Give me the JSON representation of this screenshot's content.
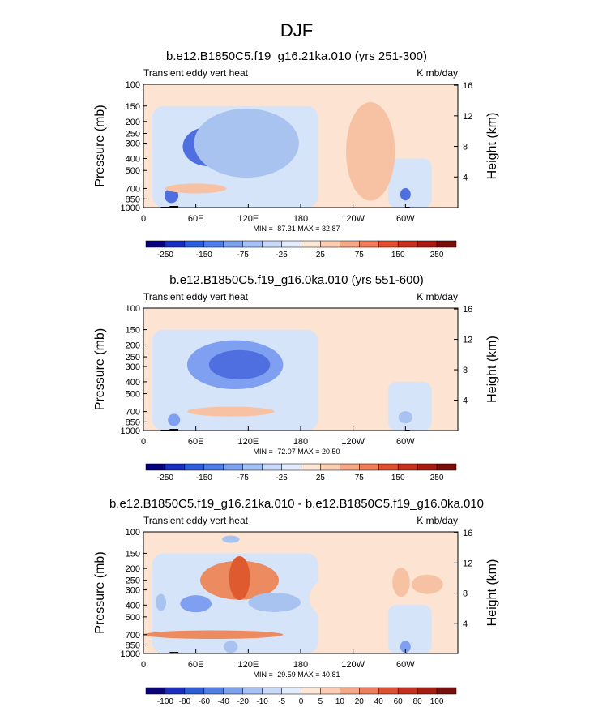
{
  "figure": {
    "title": "DJF"
  },
  "colors": {
    "pos_fill_a": "#fde4d2",
    "neg_fill_a": "#d6e4fa",
    "neg_fill_b": "#a9c3f0",
    "neg_fill_c": "#7f9ff0",
    "neg_fill_d": "#4f6fe0",
    "pos_fill_b": "#f7c2a4",
    "pos_fill_c": "#ec8a60",
    "pos_fill_d": "#e05a30",
    "topo": "#000000"
  },
  "chart_data": [
    {
      "type": "heatmap",
      "title": "b.e12.B1850C5.f19_g16.21ka.010 (yrs 251-300)",
      "left_label": "Transient eddy vert heat",
      "right_label": "K mb/day",
      "ylabel": "Pressure (mb)",
      "ylabel_right": "Height (km)",
      "x_ticks": [
        "0",
        "60E",
        "120E",
        "180",
        "120W",
        "60W"
      ],
      "y_ticks": [
        "100",
        "150",
        "200",
        "250",
        "300",
        "400",
        "500",
        "700",
        "850",
        "1000"
      ],
      "y_right_ticks": [
        "16",
        "12",
        "8",
        "4"
      ],
      "stats": "MIN = -87.31  MAX =  32.87",
      "colorbar_labels": [
        "-250",
        "-150",
        "-75",
        "-25",
        "25",
        "75",
        "150",
        "250"
      ],
      "colorbar_colors": [
        "#08037a",
        "#1a2fc0",
        "#2b5ed8",
        "#4f7ee8",
        "#7da0f0",
        "#a6c1f6",
        "#c8d9fa",
        "#e3ecfc",
        "#fde8d8",
        "#fbcdb2",
        "#f7a686",
        "#f07c5a",
        "#e0502f",
        "#c7301d",
        "#a81a12",
        "#7a0c0c"
      ],
      "blobs": [
        {
          "lon": 32,
          "p": 800,
          "w": 8,
          "h": 0.06,
          "v": -45
        },
        {
          "lon": 75,
          "p": 320,
          "w": 30,
          "h": 0.16,
          "v": -40
        },
        {
          "lon": 140,
          "p": 320,
          "w": 30,
          "h": 0.16,
          "v": -42
        },
        {
          "lon": 118,
          "p": 300,
          "w": 60,
          "h": 0.28,
          "v": -18
        },
        {
          "lon": 300,
          "p": 780,
          "w": 6,
          "h": 0.05,
          "v": -40
        },
        {
          "lon": 60,
          "p": 700,
          "w": 35,
          "h": 0.04,
          "v": 10
        },
        {
          "lon": 260,
          "p": 350,
          "w": 28,
          "h": 0.4,
          "v": 8
        }
      ]
    },
    {
      "type": "heatmap",
      "title": "b.e12.B1850C5.f19_g16.0ka.010 (yrs 551-600)",
      "left_label": "Transient eddy vert heat",
      "right_label": "K mb/day",
      "ylabel": "Pressure (mb)",
      "ylabel_right": "Height (km)",
      "x_ticks": [
        "0",
        "60E",
        "120E",
        "180",
        "120W",
        "60W"
      ],
      "y_ticks": [
        "100",
        "150",
        "200",
        "250",
        "300",
        "400",
        "500",
        "700",
        "850",
        "1000"
      ],
      "y_right_ticks": [
        "16",
        "12",
        "8",
        "4"
      ],
      "stats": "MIN = -72.07  MAX =  20.50",
      "colorbar_labels": [
        "-250",
        "-150",
        "-75",
        "-25",
        "25",
        "75",
        "150",
        "250"
      ],
      "colorbar_colors": [
        "#08037a",
        "#1a2fc0",
        "#2b5ed8",
        "#4f7ee8",
        "#7da0f0",
        "#a6c1f6",
        "#c8d9fa",
        "#e3ecfc",
        "#fde8d8",
        "#fbcdb2",
        "#f7a686",
        "#f07c5a",
        "#e0502f",
        "#c7301d",
        "#a81a12",
        "#7a0c0c"
      ],
      "blobs": [
        {
          "lon": 105,
          "p": 290,
          "w": 55,
          "h": 0.2,
          "v": -35
        },
        {
          "lon": 110,
          "p": 290,
          "w": 35,
          "h": 0.12,
          "v": -55
        },
        {
          "lon": 35,
          "p": 820,
          "w": 7,
          "h": 0.05,
          "v": -30
        },
        {
          "lon": 100,
          "p": 700,
          "w": 50,
          "h": 0.04,
          "v": 10
        },
        {
          "lon": 300,
          "p": 780,
          "w": 8,
          "h": 0.05,
          "v": -20
        }
      ]
    },
    {
      "type": "heatmap",
      "title": "b.e12.B1850C5.f19_g16.21ka.010 - b.e12.B1850C5.f19_g16.0ka.010",
      "left_label": "Transient eddy vert heat",
      "right_label": "K mb/day",
      "ylabel": "Pressure (mb)",
      "ylabel_right": "Height (km)",
      "x_ticks": [
        "0",
        "60E",
        "120E",
        "180",
        "120W",
        "60W"
      ],
      "y_ticks": [
        "100",
        "150",
        "200",
        "250",
        "300",
        "400",
        "500",
        "700",
        "850",
        "1000"
      ],
      "y_right_ticks": [
        "16",
        "12",
        "8",
        "4"
      ],
      "stats": "MIN = -29.59  MAX =  40.81",
      "colorbar_labels": [
        "-100",
        "-80",
        "-60",
        "-40",
        "-20",
        "-10",
        "-5",
        "0",
        "5",
        "10",
        "20",
        "40",
        "60",
        "80",
        "100"
      ],
      "colorbar_colors": [
        "#08037a",
        "#1a2fc0",
        "#2b5ed8",
        "#4f7ee8",
        "#7da0f0",
        "#a6c1f6",
        "#c8d9fa",
        "#e3ecfc",
        "#fde8d8",
        "#fbcdb2",
        "#f7a686",
        "#f07c5a",
        "#e0502f",
        "#c7301d",
        "#a81a12",
        "#7a0c0c"
      ],
      "blobs": [
        {
          "lon": 110,
          "p": 250,
          "w": 45,
          "h": 0.16,
          "v": 22
        },
        {
          "lon": 110,
          "p": 240,
          "w": 12,
          "h": 0.18,
          "v": 38
        },
        {
          "lon": 60,
          "p": 390,
          "w": 18,
          "h": 0.07,
          "v": -28
        },
        {
          "lon": 150,
          "p": 380,
          "w": 30,
          "h": 0.08,
          "v": -18
        },
        {
          "lon": 20,
          "p": 380,
          "w": 6,
          "h": 0.07,
          "v": -12
        },
        {
          "lon": 80,
          "p": 700,
          "w": 80,
          "h": 0.035,
          "v": 18
        },
        {
          "lon": 100,
          "p": 880,
          "w": 8,
          "h": 0.05,
          "v": -18
        },
        {
          "lon": 295,
          "p": 260,
          "w": 10,
          "h": 0.12,
          "v": 14
        },
        {
          "lon": 325,
          "p": 270,
          "w": 18,
          "h": 0.08,
          "v": 15
        },
        {
          "lon": 300,
          "p": 880,
          "w": 6,
          "h": 0.05,
          "v": -25
        },
        {
          "lon": 100,
          "p": 115,
          "w": 10,
          "h": 0.03,
          "v": -10
        },
        {
          "lon": 230,
          "p": 350,
          "w": 40,
          "h": 0.2,
          "v": 5
        }
      ]
    }
  ]
}
